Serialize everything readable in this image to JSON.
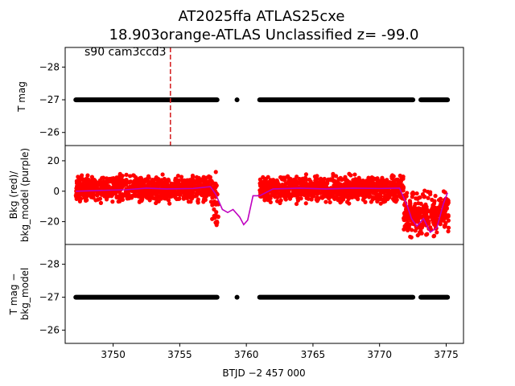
{
  "title_line1": "AT2025ffa  ATLAS25cxe",
  "title_line2": "18.903orange-ATLAS Unclassified z= -99.0",
  "annotation": "s90 cam3ccd3",
  "colors": {
    "flux_points": "#000000",
    "bkg_points": "#ff0000",
    "bkg_model_line": "#bf00bf",
    "event_marker": "#d62728"
  },
  "chart_data": [
    {
      "type": "scatter",
      "panel": "top",
      "ylabel": "T mag",
      "ylim": [
        -25.6,
        -28.6
      ],
      "yticks": [
        -28,
        -27,
        -26
      ],
      "ytick_labels": [
        "−28",
        "−27",
        "−26"
      ],
      "xlim": [
        3746.4,
        3776.3
      ],
      "inverted_y": true,
      "series": [
        {
          "points_segments": [
            {
              "x_range": [
                3747.2,
                3757.8
              ],
              "y": -27.0
            },
            {
              "x": [
                3759.3
              ],
              "y": -27.0
            },
            {
              "x_range": [
                3761.0,
                3772.5
              ],
              "y": -27.0
            },
            {
              "x_range": [
                3773.1,
                3775.1
              ],
              "y": -27.0
            }
          ]
        }
      ],
      "vertical_line": {
        "x": 3754.3,
        "style": "dashed"
      }
    },
    {
      "type": "scatter",
      "panel": "middle",
      "ylabel": "Bkg (red)/\nbkg_model (purple)",
      "ylim": [
        -35,
        30
      ],
      "yticks": [
        20,
        0,
        -20
      ],
      "ytick_labels": [
        "20",
        "0",
        "−20"
      ],
      "xlim": [
        3746.4,
        3776.3
      ],
      "series": [
        {
          "kind": "bkg_points",
          "approx": [
            {
              "x_range": [
                3747.2,
                3757.4
              ],
              "center": 1.5,
              "spread": 9
            },
            {
              "x_range": [
                3757.4,
                3757.9
              ],
              "center": -5,
              "spread": 18
            },
            {
              "x_range": [
                3761.0,
                3771.8
              ],
              "center": 1.5,
              "spread": 9
            },
            {
              "x_range": [
                3771.8,
                3775.2
              ],
              "center": -15,
              "spread": 15
            }
          ]
        },
        {
          "kind": "bkg_model",
          "x": [
            3747.2,
            3749,
            3751,
            3752.5,
            3754,
            3756,
            3757.3,
            3757.7,
            3758.2,
            3758.6,
            3759.0,
            3759.5,
            3759.8,
            3760.1,
            3760.5,
            3761.0,
            3762,
            3764,
            3766,
            3768,
            3770,
            3771.5,
            3772.1,
            3772.4,
            3772.8,
            3773.3,
            3773.8,
            3774.3,
            3774.8,
            3775.1
          ],
          "y": [
            0,
            0.5,
            1,
            2,
            1.5,
            1.8,
            3,
            -2,
            -12,
            -14,
            -12,
            -17,
            -22,
            -19,
            -3,
            -3,
            1.5,
            2,
            1.5,
            2,
            1.8,
            2,
            -10,
            -18,
            -23,
            -18,
            -27,
            -24,
            -8,
            -1
          ]
        }
      ]
    },
    {
      "type": "scatter",
      "panel": "bottom",
      "xlabel": "BTJD −2 457 000",
      "ylabel": "T mag −\nbkg_model",
      "ylim": [
        -25.6,
        -28.6
      ],
      "yticks": [
        -28,
        -27,
        -26
      ],
      "ytick_labels": [
        "−28",
        "−27",
        "−26"
      ],
      "xlim": [
        3746.4,
        3776.3
      ],
      "xticks": [
        3750,
        3755,
        3760,
        3765,
        3770,
        3775
      ],
      "xtick_labels": [
        "3750",
        "3755",
        "3760",
        "3765",
        "3770",
        "3775"
      ],
      "series": [
        {
          "points_segments": [
            {
              "x_range": [
                3747.2,
                3757.8
              ],
              "y": -27.0
            },
            {
              "x": [
                3759.3
              ],
              "y": -27.0
            },
            {
              "x_range": [
                3761.0,
                3772.5
              ],
              "y": -27.0
            },
            {
              "x_range": [
                3773.1,
                3775.1
              ],
              "y": -27.0
            }
          ]
        }
      ]
    }
  ]
}
